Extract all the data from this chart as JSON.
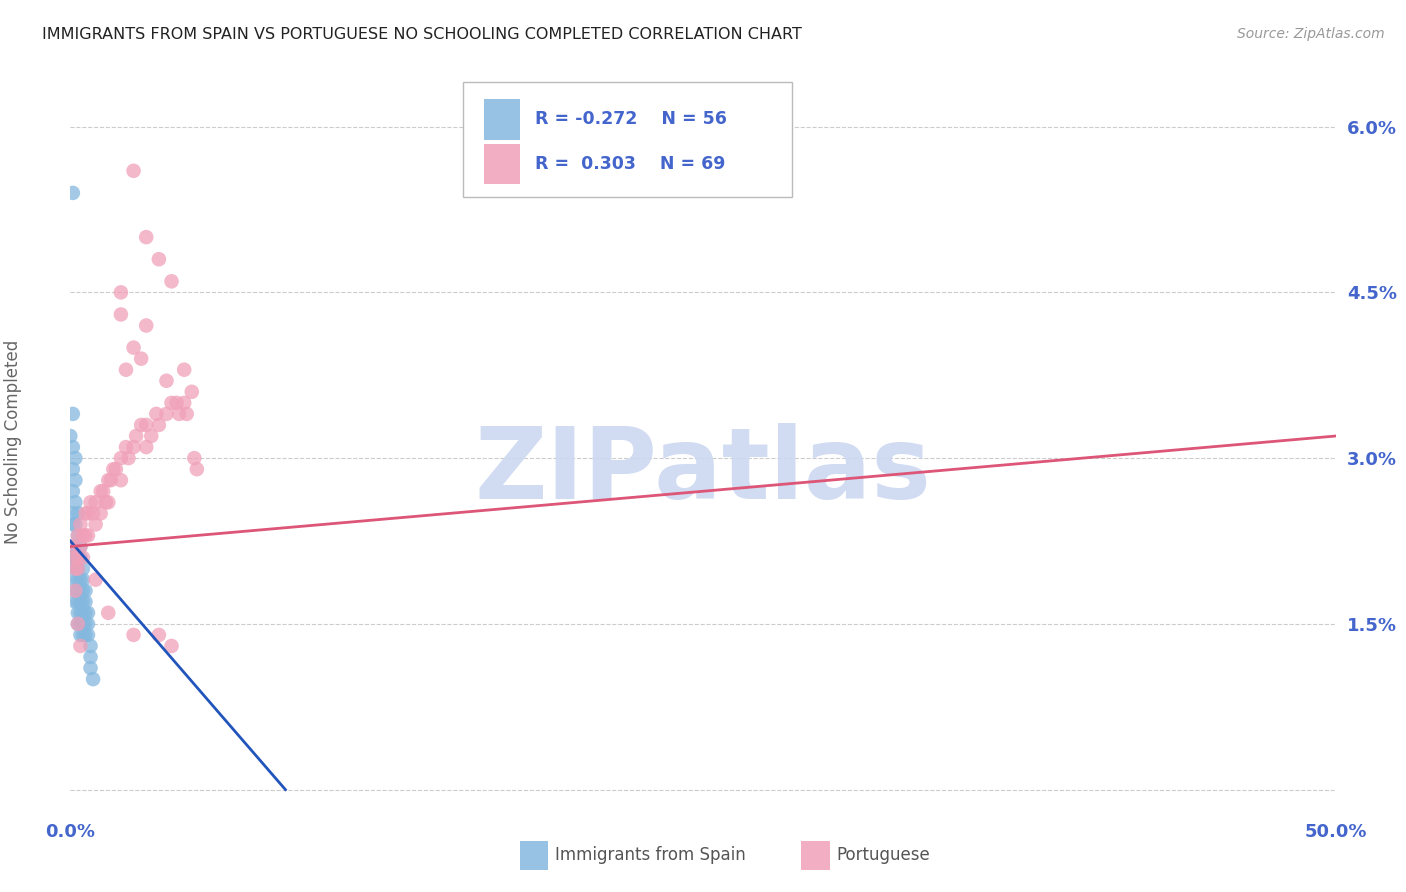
{
  "title": "IMMIGRANTS FROM SPAIN VS PORTUGUESE NO SCHOOLING COMPLETED CORRELATION CHART",
  "source": "Source: ZipAtlas.com",
  "ylabel": "No Schooling Completed",
  "yticks": [
    0.0,
    0.015,
    0.03,
    0.045,
    0.06
  ],
  "ytick_labels": [
    "",
    "1.5%",
    "3.0%",
    "4.5%",
    "6.0%"
  ],
  "xlim": [
    0.0,
    0.5
  ],
  "ylim": [
    -0.002,
    0.065
  ],
  "color_spain": "#85b8de",
  "color_portuguese": "#f0a0b8",
  "color_line_spain": "#2255bb",
  "color_line_portuguese": "#dd5577",
  "color_axis_ticks": "#4466cc",
  "watermark_text": "ZIPatlas",
  "watermark_color": "#ccd8f0",
  "spain_points": [
    [
      0.0,
      0.032
    ],
    [
      0.001,
      0.034
    ],
    [
      0.001,
      0.031
    ],
    [
      0.001,
      0.029
    ],
    [
      0.001,
      0.027
    ],
    [
      0.001,
      0.025
    ],
    [
      0.001,
      0.024
    ],
    [
      0.001,
      0.022
    ],
    [
      0.001,
      0.021
    ],
    [
      0.002,
      0.03
    ],
    [
      0.002,
      0.028
    ],
    [
      0.002,
      0.026
    ],
    [
      0.002,
      0.024
    ],
    [
      0.002,
      0.022
    ],
    [
      0.002,
      0.021
    ],
    [
      0.002,
      0.02
    ],
    [
      0.002,
      0.019
    ],
    [
      0.002,
      0.018
    ],
    [
      0.002,
      0.017
    ],
    [
      0.003,
      0.025
    ],
    [
      0.003,
      0.023
    ],
    [
      0.003,
      0.021
    ],
    [
      0.003,
      0.02
    ],
    [
      0.003,
      0.019
    ],
    [
      0.003,
      0.018
    ],
    [
      0.003,
      0.017
    ],
    [
      0.003,
      0.016
    ],
    [
      0.003,
      0.015
    ],
    [
      0.004,
      0.022
    ],
    [
      0.004,
      0.021
    ],
    [
      0.004,
      0.019
    ],
    [
      0.004,
      0.018
    ],
    [
      0.004,
      0.017
    ],
    [
      0.004,
      0.016
    ],
    [
      0.004,
      0.015
    ],
    [
      0.004,
      0.014
    ],
    [
      0.005,
      0.02
    ],
    [
      0.005,
      0.019
    ],
    [
      0.005,
      0.018
    ],
    [
      0.005,
      0.017
    ],
    [
      0.005,
      0.016
    ],
    [
      0.005,
      0.015
    ],
    [
      0.005,
      0.014
    ],
    [
      0.006,
      0.018
    ],
    [
      0.006,
      0.017
    ],
    [
      0.006,
      0.016
    ],
    [
      0.006,
      0.015
    ],
    [
      0.006,
      0.014
    ],
    [
      0.007,
      0.016
    ],
    [
      0.007,
      0.015
    ],
    [
      0.007,
      0.014
    ],
    [
      0.008,
      0.013
    ],
    [
      0.008,
      0.012
    ],
    [
      0.008,
      0.011
    ],
    [
      0.001,
      0.054
    ],
    [
      0.009,
      0.01
    ]
  ],
  "portuguese_points": [
    [
      0.001,
      0.022
    ],
    [
      0.002,
      0.021
    ],
    [
      0.002,
      0.02
    ],
    [
      0.003,
      0.023
    ],
    [
      0.003,
      0.021
    ],
    [
      0.003,
      0.02
    ],
    [
      0.004,
      0.024
    ],
    [
      0.004,
      0.022
    ],
    [
      0.005,
      0.023
    ],
    [
      0.005,
      0.021
    ],
    [
      0.006,
      0.025
    ],
    [
      0.006,
      0.023
    ],
    [
      0.007,
      0.025
    ],
    [
      0.007,
      0.023
    ],
    [
      0.008,
      0.026
    ],
    [
      0.009,
      0.025
    ],
    [
      0.01,
      0.026
    ],
    [
      0.01,
      0.024
    ],
    [
      0.012,
      0.027
    ],
    [
      0.012,
      0.025
    ],
    [
      0.013,
      0.027
    ],
    [
      0.014,
      0.026
    ],
    [
      0.015,
      0.028
    ],
    [
      0.015,
      0.026
    ],
    [
      0.016,
      0.028
    ],
    [
      0.017,
      0.029
    ],
    [
      0.018,
      0.029
    ],
    [
      0.02,
      0.03
    ],
    [
      0.02,
      0.028
    ],
    [
      0.022,
      0.031
    ],
    [
      0.023,
      0.03
    ],
    [
      0.025,
      0.031
    ],
    [
      0.026,
      0.032
    ],
    [
      0.028,
      0.033
    ],
    [
      0.03,
      0.033
    ],
    [
      0.03,
      0.031
    ],
    [
      0.032,
      0.032
    ],
    [
      0.034,
      0.034
    ],
    [
      0.035,
      0.033
    ],
    [
      0.038,
      0.034
    ],
    [
      0.04,
      0.035
    ],
    [
      0.042,
      0.035
    ],
    [
      0.043,
      0.034
    ],
    [
      0.045,
      0.035
    ],
    [
      0.046,
      0.034
    ],
    [
      0.048,
      0.036
    ],
    [
      0.049,
      0.03
    ],
    [
      0.05,
      0.029
    ],
    [
      0.025,
      0.056
    ],
    [
      0.03,
      0.05
    ],
    [
      0.035,
      0.048
    ],
    [
      0.02,
      0.045
    ],
    [
      0.04,
      0.046
    ],
    [
      0.02,
      0.043
    ],
    [
      0.03,
      0.042
    ],
    [
      0.025,
      0.04
    ],
    [
      0.022,
      0.038
    ],
    [
      0.028,
      0.039
    ],
    [
      0.045,
      0.038
    ],
    [
      0.038,
      0.037
    ],
    [
      0.002,
      0.018
    ],
    [
      0.003,
      0.015
    ],
    [
      0.004,
      0.013
    ],
    [
      0.01,
      0.019
    ],
    [
      0.015,
      0.016
    ],
    [
      0.025,
      0.014
    ],
    [
      0.035,
      0.014
    ],
    [
      0.04,
      0.013
    ]
  ],
  "spain_line_x": [
    0.0,
    0.085
  ],
  "spain_line_y": [
    0.0225,
    0.0
  ],
  "portuguese_line_x": [
    0.0,
    0.5
  ],
  "portuguese_line_y": [
    0.022,
    0.032
  ]
}
